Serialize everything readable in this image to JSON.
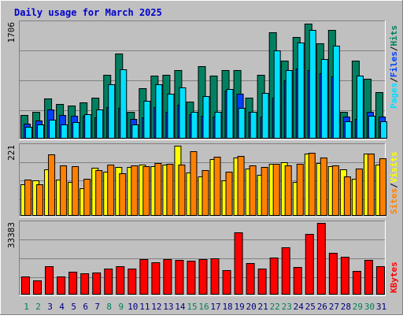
{
  "title": "Daily usage for March 2025",
  "colors": {
    "background": "#c0c0c0",
    "title_text": "#0000cc",
    "grid": "#808080",
    "pages": "#00e0ff",
    "files": "#0040ff",
    "hits": "#008060",
    "visits": "#ffff00",
    "sites": "#ff8000",
    "kbytes": "#ff0000",
    "day_normal": "#000080",
    "day_weekend": "#00805a"
  },
  "chart_data": [
    {
      "type": "bar",
      "name": "hits-files-pages",
      "ymax_label": "1706",
      "ylim": [
        0,
        1706
      ],
      "grid": true,
      "legend": [
        "Pages",
        "/",
        "Files",
        "/",
        "Hits"
      ],
      "categories": [
        "1",
        "2",
        "3",
        "4",
        "5",
        "6",
        "7",
        "8",
        "9",
        "10",
        "11",
        "12",
        "13",
        "14",
        "15",
        "16",
        "17",
        "18",
        "19",
        "20",
        "21",
        "22",
        "23",
        "24",
        "25",
        "26",
        "27",
        "28",
        "29",
        "30",
        "31"
      ],
      "series": [
        {
          "name": "Hits",
          "values": [
            340,
            390,
            580,
            500,
            480,
            530,
            600,
            940,
            1250,
            390,
            740,
            920,
            930,
            1000,
            540,
            1060,
            920,
            1000,
            1010,
            600,
            940,
            1560,
            1140,
            1500,
            1690,
            1400,
            1600,
            380,
            1140,
            880,
            680
          ]
        },
        {
          "name": "Files",
          "values": [
            210,
            260,
            420,
            340,
            330,
            330,
            300,
            460,
            440,
            280,
            300,
            450,
            380,
            490,
            350,
            330,
            310,
            700,
            650,
            390,
            320,
            600,
            850,
            1030,
            1000,
            960,
            910,
            320,
            280,
            390,
            310
          ]
        },
        {
          "name": "Pages",
          "values": [
            160,
            200,
            270,
            200,
            230,
            350,
            420,
            800,
            1020,
            200,
            550,
            790,
            650,
            750,
            380,
            620,
            390,
            730,
            440,
            380,
            670,
            1300,
            1000,
            1410,
            1600,
            1170,
            1370,
            250,
            920,
            330,
            250
          ]
        }
      ]
    },
    {
      "type": "bar",
      "name": "visits-sites",
      "ymax_label": "221",
      "ylim": [
        0,
        221
      ],
      "grid": true,
      "legend": [
        "Sites",
        "/",
        "Visits"
      ],
      "categories": [
        "1",
        "2",
        "3",
        "4",
        "5",
        "6",
        "7",
        "8",
        "9",
        "10",
        "11",
        "12",
        "13",
        "14",
        "15",
        "16",
        "17",
        "18",
        "19",
        "20",
        "21",
        "22",
        "23",
        "24",
        "25",
        "26",
        "27",
        "28",
        "29",
        "30",
        "31"
      ],
      "series": [
        {
          "name": "Visits",
          "values": [
            98,
            110,
            145,
            114,
            106,
            85,
            150,
            139,
            152,
            152,
            161,
            156,
            160,
            221,
            136,
            124,
            178,
            110,
            183,
            147,
            127,
            163,
            168,
            105,
            196,
            167,
            155,
            145,
            116,
            195,
            160
          ]
        },
        {
          "name": "Sites",
          "values": [
            113,
            97,
            193,
            157,
            155,
            116,
            142,
            160,
            133,
            158,
            156,
            165,
            163,
            160,
            203,
            143,
            185,
            138,
            188,
            158,
            153,
            162,
            158,
            163,
            198,
            183,
            158,
            122,
            148,
            197,
            180
          ]
        }
      ]
    },
    {
      "type": "bar",
      "name": "kbytes",
      "ymax_label": "33383",
      "ylim": [
        0,
        33383
      ],
      "grid": true,
      "legend": [
        "KBytes"
      ],
      "categories": [
        "1",
        "2",
        "3",
        "4",
        "5",
        "6",
        "7",
        "8",
        "9",
        "10",
        "11",
        "12",
        "13",
        "14",
        "15",
        "16",
        "17",
        "18",
        "19",
        "20",
        "21",
        "22",
        "23",
        "24",
        "25",
        "26",
        "27",
        "28",
        "29",
        "30",
        "31"
      ],
      "series": [
        {
          "name": "KBytes",
          "values": [
            8200,
            6200,
            12800,
            8000,
            10300,
            9700,
            10100,
            12000,
            12800,
            12000,
            16300,
            14800,
            16300,
            15800,
            15600,
            16200,
            16600,
            11200,
            29100,
            14400,
            12000,
            17200,
            21700,
            12700,
            28200,
            33383,
            19200,
            17600,
            10900,
            15800,
            13100
          ]
        }
      ]
    }
  ],
  "x_labels": {
    "days": [
      "1",
      "2",
      "3",
      "4",
      "5",
      "6",
      "7",
      "8",
      "9",
      "10",
      "11",
      "12",
      "13",
      "14",
      "15",
      "16",
      "17",
      "18",
      "19",
      "20",
      "21",
      "22",
      "23",
      "24",
      "25",
      "26",
      "27",
      "28",
      "29",
      "30",
      "31"
    ],
    "weekend_days": [
      "1",
      "2",
      "8",
      "9",
      "15",
      "16",
      "22",
      "23",
      "29",
      "30"
    ]
  }
}
